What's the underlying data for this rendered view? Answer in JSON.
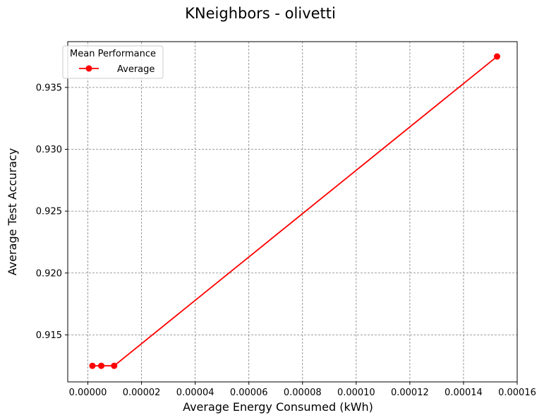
{
  "chart_data": {
    "type": "line",
    "title": "KNeighbors - olivetti",
    "xlabel": "Average Energy Consumed (kWh)",
    "ylabel": "Average Test Accuracy",
    "xlim": [
      -7.5e-06,
      0.00016
    ],
    "ylim": [
      0.9112,
      0.9387
    ],
    "xticks": [
      0,
      2e-05,
      4e-05,
      6e-05,
      8e-05,
      0.0001,
      0.00012,
      0.00014,
      0.00016
    ],
    "xtick_labels": [
      "0.00000",
      "0.00002",
      "0.00004",
      "0.00006",
      "0.00008",
      "0.00010",
      "0.00012",
      "0.00014",
      "0.00016"
    ],
    "yticks": [
      0.915,
      0.92,
      0.925,
      0.93,
      0.935
    ],
    "ytick_labels": [
      "0.915",
      "0.920",
      "0.925",
      "0.930",
      "0.935"
    ],
    "grid": true,
    "legend": {
      "title": "Mean Performance",
      "placement": "top-left"
    },
    "series": [
      {
        "name": "Average",
        "color": "#ff0000",
        "marker": "circle",
        "x": [
          1.7e-06,
          5e-06,
          9.8e-06,
          0.0001525
        ],
        "y": [
          0.9125,
          0.9125,
          0.9125,
          0.9375
        ]
      }
    ]
  }
}
